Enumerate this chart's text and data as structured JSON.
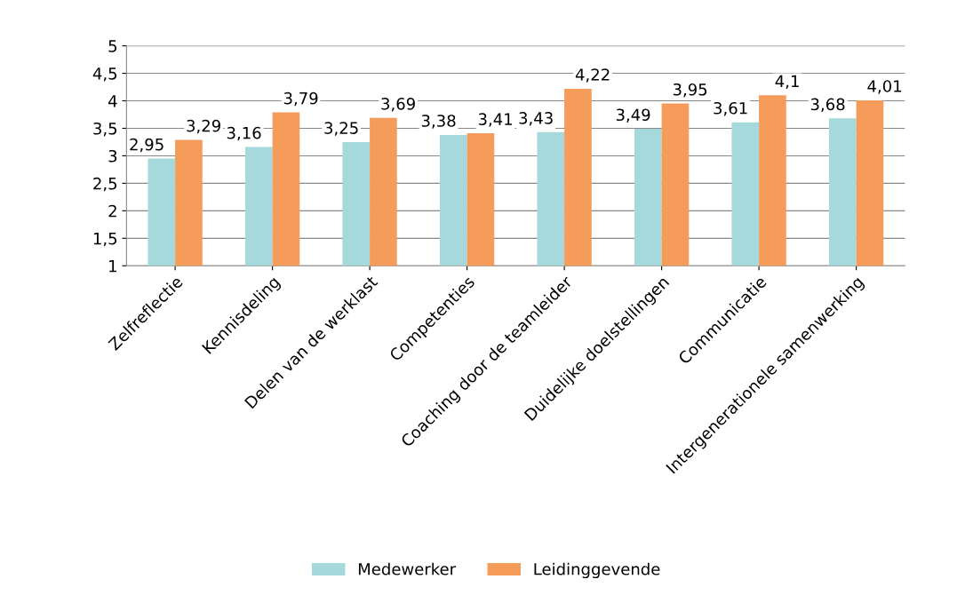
{
  "chart_data": {
    "type": "bar",
    "categories": [
      "Zelfreflectie",
      "Kennisdeling",
      "Delen van de werklast",
      "Competenties",
      "Coaching door de teamleider",
      "Duidelijke doelstellingen",
      "Communicatie",
      "Intergenerationele samenwerking"
    ],
    "series": [
      {
        "name": "Medewerker",
        "color": "#a5d9dc",
        "values": [
          2.95,
          3.16,
          3.25,
          3.38,
          3.43,
          3.49,
          3.61,
          3.68
        ],
        "value_labels": [
          "2,95",
          "3,16",
          "3,25",
          "3,38",
          "3,43",
          "3,49",
          "3,61",
          "3,68"
        ]
      },
      {
        "name": "Leidinggevende",
        "color": "#f59c5a",
        "values": [
          3.29,
          3.79,
          3.69,
          3.41,
          4.22,
          3.95,
          4.1,
          4.01
        ],
        "value_labels": [
          "3,29",
          "3,79",
          "3,69",
          "3,41",
          "4,22",
          "3,95",
          "4,1",
          "4,01"
        ]
      }
    ],
    "ylim": [
      1,
      5
    ],
    "yticks": [
      1,
      {
        "value": 1.5,
        "label": "1,5"
      },
      2,
      {
        "value": 2.5,
        "label": "2,5"
      },
      3,
      {
        "value": 3.5,
        "label": "3,5"
      },
      4,
      {
        "value": 4.5,
        "label": "4,5"
      },
      5
    ],
    "grid": "y",
    "legend": "bottom"
  }
}
